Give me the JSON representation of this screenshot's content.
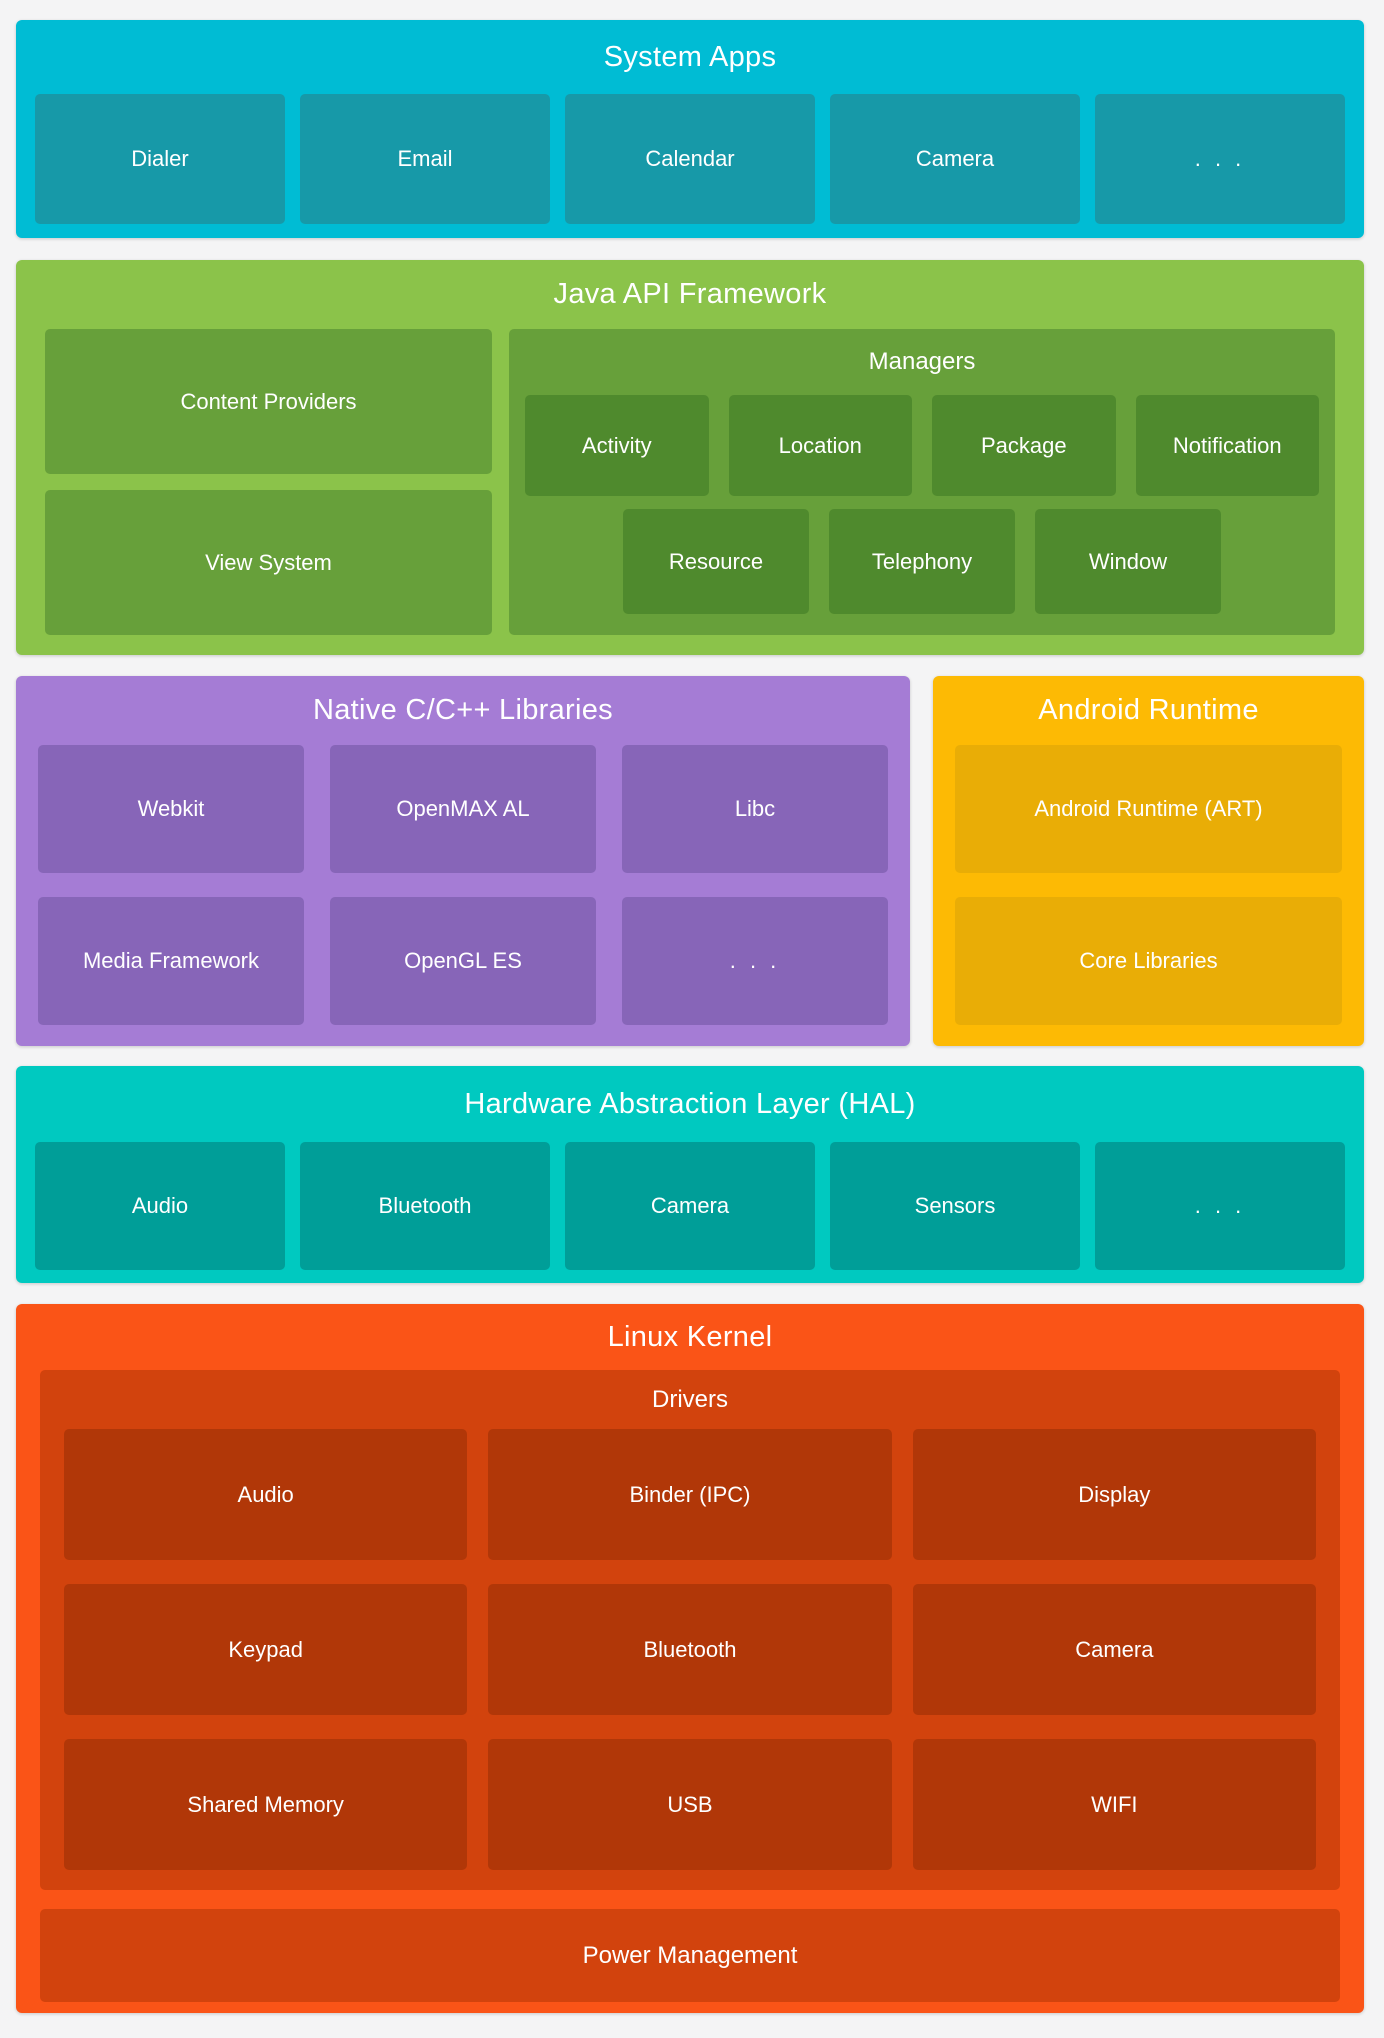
{
  "page": {
    "background": "#F4F4F5",
    "text_color": "#FFFFFF"
  },
  "sections": {
    "system_apps": {
      "title": "System Apps",
      "colors": {
        "bg": "#00BCD4",
        "box": "#1799A8"
      },
      "boxes": [
        "Dialer",
        "Email",
        "Calendar",
        "Camera",
        ". . ."
      ]
    },
    "java_api": {
      "title": "Java API Framework",
      "colors": {
        "bg": "#8BC34A",
        "box": "#67A03A",
        "inner_box": "#4F8A2D"
      },
      "left_boxes": [
        "Content Providers",
        "View System"
      ],
      "managers": {
        "title": "Managers",
        "row1": [
          "Activity",
          "Location",
          "Package",
          "Notification"
        ],
        "row2": [
          "Resource",
          "Telephony",
          "Window"
        ]
      }
    },
    "native_libs": {
      "title": "Native C/C++ Libraries",
      "colors": {
        "bg": "#A57CD5",
        "box": "#8765B8"
      },
      "boxes": [
        "Webkit",
        "OpenMAX AL",
        "Libc",
        "Media Framework",
        "OpenGL ES",
        ". . ."
      ]
    },
    "android_runtime": {
      "title": "Android Runtime",
      "colors": {
        "bg": "#FDBA04",
        "box": "#E9AD06"
      },
      "boxes": [
        "Android Runtime (ART)",
        "Core Libraries"
      ]
    },
    "hal": {
      "title": "Hardware Abstraction Layer (HAL)",
      "colors": {
        "bg": "#00C9C0",
        "box": "#009E98"
      },
      "boxes": [
        "Audio",
        "Bluetooth",
        "Camera",
        "Sensors",
        ". . ."
      ]
    },
    "linux_kernel": {
      "title": "Linux Kernel",
      "colors": {
        "bg": "#FA5417",
        "panel": "#D2430D",
        "box": "#B13708"
      },
      "drivers": {
        "title": "Drivers",
        "boxes": [
          "Audio",
          "Binder (IPC)",
          "Display",
          "Keypad",
          "Bluetooth",
          "Camera",
          "Shared Memory",
          "USB",
          "WIFI"
        ]
      },
      "power_management": "Power Management"
    }
  }
}
